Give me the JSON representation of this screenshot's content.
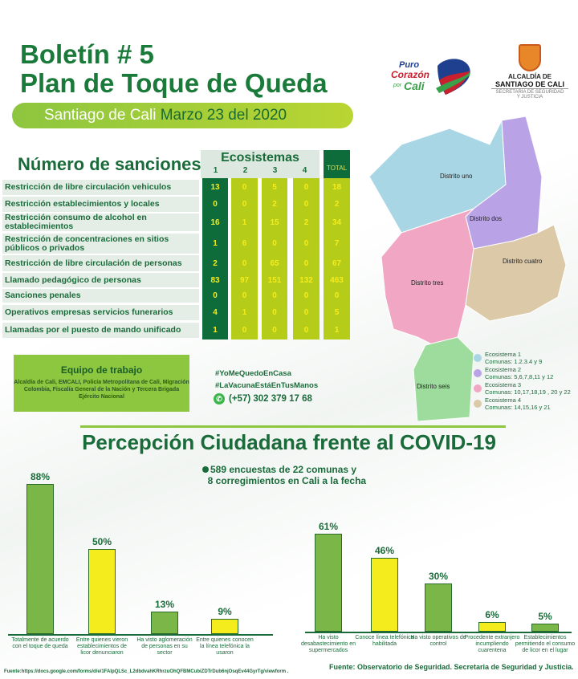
{
  "header": {
    "title_line1": "Boletín # 5",
    "title_line2": "Plan de Toque de Queda",
    "city": "Santiago de Cali",
    "date": "Marzo 23 del 2020"
  },
  "logos": {
    "puro": "Puro",
    "corazon": "Corazón",
    "por": "por",
    "cali": "Cali",
    "alcaldia1": "ALCALDÍA DE",
    "alcaldia2": "SANTIAGO DE CALI",
    "secretaria": "SECRETARÍA DE SEGURIDAD Y JUSTICIA"
  },
  "table": {
    "title": "Número de sanciones",
    "group_header": "Ecosistemas",
    "columns": [
      "1",
      "2",
      "3",
      "4"
    ],
    "total_header": "TOTAL",
    "rows": [
      {
        "label": "Restricción de libre circulación vehiculos",
        "values": [
          "13",
          "0",
          "5",
          "0"
        ],
        "total": "18"
      },
      {
        "label": "Restricción establecimientos y locales",
        "values": [
          "0",
          "0",
          "2",
          "0"
        ],
        "total": "2"
      },
      {
        "label": "Restricción consumo de alcohol en establecimientos",
        "values": [
          "16",
          "1",
          "15",
          "2"
        ],
        "total": "34"
      },
      {
        "label": "Restricción de concentraciones en sitios públicos o privados",
        "values": [
          "1",
          "6",
          "0",
          "0"
        ],
        "total": "7"
      },
      {
        "label": "Restricción de libre circulación de personas",
        "values": [
          "2",
          "0",
          "65",
          "0"
        ],
        "total": "67"
      },
      {
        "label": "Llamado pedagógico de personas",
        "values": [
          "83",
          "97",
          "151",
          "132"
        ],
        "total": "463"
      },
      {
        "label": "Sanciones penales",
        "values": [
          "0",
          "0",
          "0",
          "0"
        ],
        "total": "0"
      },
      {
        "label": "Operativos empresas servicios funerarios",
        "values": [
          "4",
          "1",
          "0",
          "0"
        ],
        "total": "5"
      },
      {
        "label": "Llamadas por el puesto de mando unificado",
        "values": [
          "1",
          "0",
          "0",
          "0"
        ],
        "total": "1"
      }
    ]
  },
  "equipo": {
    "title": "Equipo de trabajo",
    "text": "Alcaldía de Cali, EMCALI, Policía Metropolitana de Cali, Migración Colombia, Fiscalía General de la Nación y Tercera Brigada Ejército Nacional"
  },
  "contact": {
    "hashtag1": "#YoMeQuedoEnCasa",
    "hashtag2": "#LaVacunaEstáEnTusManos",
    "phone": "(+57) 302 379 17 68"
  },
  "map": {
    "districts": [
      "Distrito uno",
      "Distrito dos",
      "Distrito tres",
      "Distrito cuatro",
      "Distrito seis"
    ],
    "legend": [
      {
        "name": "Ecosistema 1",
        "comunas": "Comunas: 1.2.3.4 y 9",
        "color": "#a9d6e5"
      },
      {
        "name": "Ecosistema 2",
        "comunas": "Comunas: 5,6,7,8,11 y 12",
        "color": "#b9a3e6"
      },
      {
        "name": "Ecosistema 3",
        "comunas": "Comunas: 10,17,18,19 , 20 y 22",
        "color": "#f1a7c4"
      },
      {
        "name": "Ecosistema 4",
        "comunas": "Comunas: 14,15,16 y 21",
        "color": "#dcc9a8"
      }
    ]
  },
  "survey": {
    "title": "Percepción Ciudadana frente al COVID-19",
    "subtitle1": "589 encuestas de 22 comunas y",
    "subtitle2": "8 corregimientos en Cali a la fecha",
    "source_left": "Fuente:https://docs.google.com/forms/d/e/1FAIpQLSc_L2dbdvahKRhrzuOhQFBMCubiZDTrDub6njOsqEv44GyrTg/viewform .",
    "source_right": "Fuente: Observatorio de Seguridad. Secretaria de Seguridad y Justicia."
  },
  "chart_data": [
    {
      "type": "bar",
      "categories": [
        "Totalmente de acuerdo con el toque de queda",
        "Entre quienes vieron establecimientos de licor denunciaron",
        "Ha visto aglomeración de personas en su sector",
        "Entre quienes conocen la línea telefónica la usaron"
      ],
      "values": [
        88,
        50,
        13,
        9
      ],
      "labels": [
        "88%",
        "50%",
        "13%",
        "9%"
      ],
      "colors": [
        "#7ab648",
        "#f5ec1e",
        "#7ab648",
        "#f5ec1e"
      ],
      "ylim": [
        0,
        100
      ]
    },
    {
      "type": "bar",
      "categories": [
        "Ha visto desabastecimiento en supermercados",
        "Conoce línea telefónica habilitada",
        "Ha visto operativos de control",
        "Procedente extranjero incumpliendo cuarentena",
        "Establecimientos permitiendo el consumo de licor en el lugar"
      ],
      "values": [
        61,
        46,
        30,
        6,
        5
      ],
      "labels": [
        "61%",
        "46%",
        "30%",
        "6%",
        "5%"
      ],
      "colors": [
        "#7ab648",
        "#f5ec1e",
        "#7ab648",
        "#f5ec1e",
        "#7ab648"
      ],
      "ylim": [
        0,
        100
      ]
    }
  ]
}
